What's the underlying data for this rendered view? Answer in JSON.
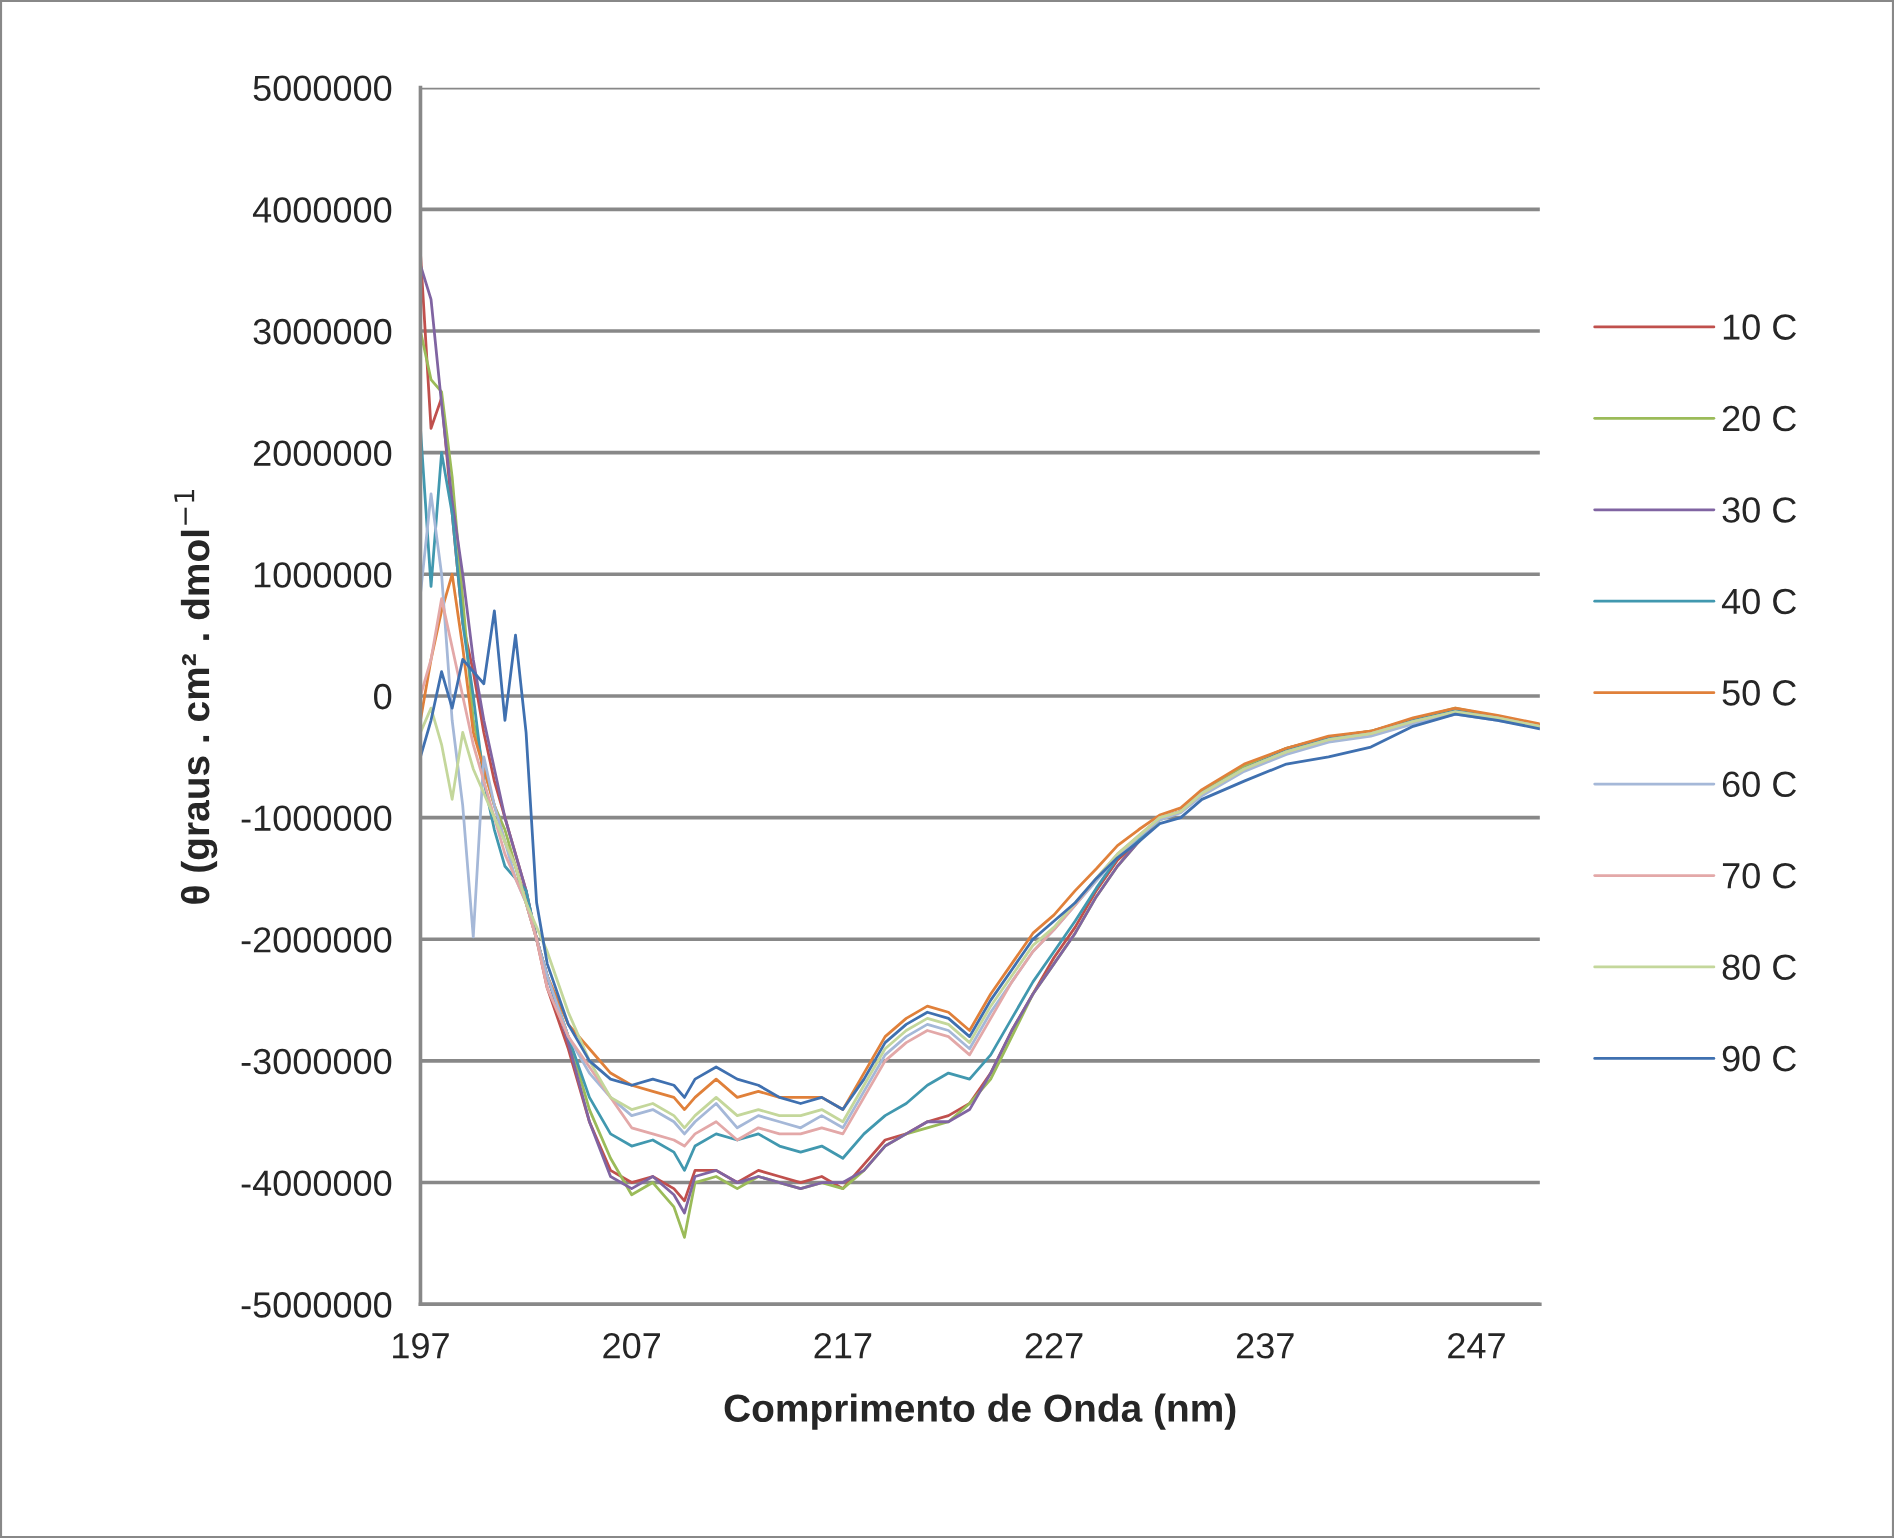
{
  "chart_data": {
    "type": "line",
    "xlabel": "Comprimento de Onda (nm)",
    "ylabel": "θ (graus . cm² . dmol$^{−1}$",
    "x": [
      197,
      197.5,
      198,
      198.5,
      199,
      199.5,
      200,
      200.5,
      201,
      201.5,
      202,
      202.5,
      203,
      204,
      205,
      206,
      207,
      208,
      209,
      209.5,
      210,
      211,
      212,
      213,
      214,
      215,
      216,
      217,
      218,
      219,
      220,
      221,
      222,
      223,
      224,
      225,
      226,
      227,
      228,
      229,
      230,
      231,
      232,
      233,
      234,
      236,
      238,
      240,
      242,
      244,
      246,
      248,
      250
    ],
    "xlim": [
      197,
      250
    ],
    "xticks": [
      197,
      207,
      217,
      227,
      237,
      247
    ],
    "ylim": [
      -5000000,
      5000000
    ],
    "yticks": [
      -5000000,
      -4000000,
      -3000000,
      -2000000,
      -1000000,
      0,
      1000000,
      2000000,
      3000000,
      4000000,
      5000000
    ],
    "grid": "y",
    "legend": "right",
    "marker": "none",
    "line_style": "solid",
    "series": [
      {
        "name": "10 C",
        "color": "#c0504d",
        "values": [
          3640000,
          2200000,
          2450000,
          1500000,
          600000,
          200000,
          -300000,
          -700000,
          -1000000,
          -1300000,
          -1600000,
          -2000000,
          -2400000,
          -2900000,
          -3500000,
          -3900000,
          -4000000,
          -3950000,
          -4050000,
          -4150000,
          -3900000,
          -3900000,
          -4000000,
          -3900000,
          -3950000,
          -4000000,
          -3950000,
          -4050000,
          -3850000,
          -3650000,
          -3600000,
          -3500000,
          -3450000,
          -3350000,
          -3100000,
          -2750000,
          -2450000,
          -2150000,
          -1900000,
          -1600000,
          -1350000,
          -1200000,
          -1000000,
          -950000,
          -780000,
          -580000,
          -430000,
          -340000,
          -290000,
          -190000,
          -110000,
          -170000,
          -240000
        ]
      },
      {
        "name": "20 C",
        "color": "#9bbb59",
        "values": [
          3000000,
          2600000,
          2500000,
          1800000,
          800000,
          -200000,
          -600000,
          -900000,
          -1100000,
          -1400000,
          -1700000,
          -2000000,
          -2300000,
          -2800000,
          -3400000,
          -3800000,
          -4100000,
          -4000000,
          -4200000,
          -4450000,
          -4000000,
          -3950000,
          -4050000,
          -3950000,
          -4000000,
          -4050000,
          -4000000,
          -4050000,
          -3900000,
          -3700000,
          -3600000,
          -3550000,
          -3500000,
          -3350000,
          -3150000,
          -2800000,
          -2450000,
          -2200000,
          -1950000,
          -1650000,
          -1400000,
          -1200000,
          -1020000,
          -950000,
          -780000,
          -580000,
          -430000,
          -340000,
          -290000,
          -190000,
          -100000,
          -170000,
          -240000
        ]
      },
      {
        "name": "30 C",
        "color": "#8064a2",
        "values": [
          3540000,
          3260000,
          2400000,
          1600000,
          1000000,
          300000,
          -200000,
          -600000,
          -1000000,
          -1300000,
          -1600000,
          -2000000,
          -2300000,
          -2850000,
          -3500000,
          -3950000,
          -4050000,
          -3950000,
          -4100000,
          -4250000,
          -3950000,
          -3900000,
          -4000000,
          -3950000,
          -4000000,
          -4050000,
          -4000000,
          -4000000,
          -3900000,
          -3700000,
          -3600000,
          -3500000,
          -3500000,
          -3400000,
          -3100000,
          -2750000,
          -2450000,
          -2200000,
          -1950000,
          -1650000,
          -1400000,
          -1200000,
          -1000000,
          -950000,
          -800000,
          -600000,
          -450000,
          -350000,
          -300000,
          -210000,
          -130000,
          -180000,
          -250000
        ]
      },
      {
        "name": "40 C",
        "color": "#4198af",
        "values": [
          2200000,
          900000,
          2000000,
          1500000,
          600000,
          0,
          -700000,
          -1100000,
          -1400000,
          -1500000,
          -1600000,
          -2000000,
          -2300000,
          -2800000,
          -3300000,
          -3600000,
          -3700000,
          -3650000,
          -3750000,
          -3900000,
          -3700000,
          -3600000,
          -3650000,
          -3600000,
          -3700000,
          -3750000,
          -3700000,
          -3800000,
          -3600000,
          -3450000,
          -3350000,
          -3200000,
          -3100000,
          -3150000,
          -2950000,
          -2650000,
          -2350000,
          -2100000,
          -1850000,
          -1580000,
          -1330000,
          -1180000,
          -1000000,
          -950000,
          -800000,
          -600000,
          -450000,
          -350000,
          -300000,
          -200000,
          -120000,
          -180000,
          -250000
        ]
      },
      {
        "name": "50 C",
        "color": "#e0803a",
        "values": [
          -200000,
          300000,
          700000,
          1000000,
          400000,
          -300000,
          -600000,
          -900000,
          -1200000,
          -1400000,
          -1700000,
          -2000000,
          -2300000,
          -2700000,
          -2900000,
          -3100000,
          -3200000,
          -3250000,
          -3300000,
          -3400000,
          -3300000,
          -3150000,
          -3300000,
          -3250000,
          -3300000,
          -3300000,
          -3300000,
          -3400000,
          -3100000,
          -2800000,
          -2650000,
          -2550000,
          -2600000,
          -2750000,
          -2450000,
          -2200000,
          -1950000,
          -1800000,
          -1600000,
          -1420000,
          -1230000,
          -1100000,
          -980000,
          -920000,
          -770000,
          -560000,
          -430000,
          -330000,
          -290000,
          -180000,
          -100000,
          -160000,
          -230000
        ]
      },
      {
        "name": "60 C",
        "color": "#a5b8d8",
        "values": [
          840000,
          1660000,
          1000000,
          -200000,
          -900000,
          -1980000,
          -500000,
          -900000,
          -1200000,
          -1500000,
          -1700000,
          -2000000,
          -2300000,
          -2800000,
          -3100000,
          -3300000,
          -3450000,
          -3400000,
          -3500000,
          -3600000,
          -3500000,
          -3350000,
          -3550000,
          -3450000,
          -3500000,
          -3550000,
          -3450000,
          -3550000,
          -3250000,
          -2950000,
          -2800000,
          -2700000,
          -2750000,
          -2900000,
          -2600000,
          -2350000,
          -2100000,
          -1920000,
          -1720000,
          -1520000,
          -1320000,
          -1160000,
          -1020000,
          -960000,
          -820000,
          -620000,
          -480000,
          -380000,
          -330000,
          -230000,
          -150000,
          -200000,
          -260000
        ]
      },
      {
        "name": "70 C",
        "color": "#e3a8a8",
        "values": [
          0,
          300000,
          800000,
          400000,
          0,
          -400000,
          -700000,
          -1000000,
          -1300000,
          -1500000,
          -1700000,
          -2000000,
          -2400000,
          -2800000,
          -3050000,
          -3300000,
          -3550000,
          -3600000,
          -3650000,
          -3700000,
          -3600000,
          -3500000,
          -3650000,
          -3550000,
          -3600000,
          -3600000,
          -3550000,
          -3600000,
          -3300000,
          -3000000,
          -2850000,
          -2750000,
          -2800000,
          -2950000,
          -2650000,
          -2350000,
          -2100000,
          -1920000,
          -1720000,
          -1500000,
          -1300000,
          -1150000,
          -1000000,
          -950000,
          -800000,
          -600000,
          -460000,
          -360000,
          -310000,
          -210000,
          -130000,
          -180000,
          -250000
        ]
      },
      {
        "name": "80 C",
        "color": "#c4d79b",
        "values": [
          -300000,
          -100000,
          -400000,
          -850000,
          -300000,
          -600000,
          -800000,
          -1000000,
          -1200000,
          -1400000,
          -1700000,
          -1900000,
          -2100000,
          -2600000,
          -3000000,
          -3300000,
          -3400000,
          -3350000,
          -3450000,
          -3550000,
          -3450000,
          -3300000,
          -3450000,
          -3400000,
          -3450000,
          -3450000,
          -3400000,
          -3500000,
          -3200000,
          -2900000,
          -2750000,
          -2650000,
          -2700000,
          -2850000,
          -2550000,
          -2300000,
          -2050000,
          -1900000,
          -1700000,
          -1500000,
          -1300000,
          -1150000,
          -1000000,
          -950000,
          -800000,
          -600000,
          -460000,
          -360000,
          -310000,
          -210000,
          -130000,
          -180000,
          -250000
        ]
      },
      {
        "name": "90 C",
        "color": "#3f70b0",
        "values": [
          -500000,
          -200000,
          200000,
          -100000,
          300000,
          200000,
          100000,
          700000,
          -200000,
          500000,
          -300000,
          -1700000,
          -2200000,
          -2700000,
          -3000000,
          -3150000,
          -3200000,
          -3150000,
          -3200000,
          -3300000,
          -3150000,
          -3050000,
          -3150000,
          -3200000,
          -3300000,
          -3350000,
          -3300000,
          -3400000,
          -3150000,
          -2850000,
          -2700000,
          -2600000,
          -2650000,
          -2800000,
          -2500000,
          -2250000,
          -2000000,
          -1850000,
          -1700000,
          -1500000,
          -1330000,
          -1200000,
          -1050000,
          -1000000,
          -850000,
          -700000,
          -560000,
          -500000,
          -420000,
          -250000,
          -150000,
          -200000,
          -270000
        ]
      }
    ]
  }
}
